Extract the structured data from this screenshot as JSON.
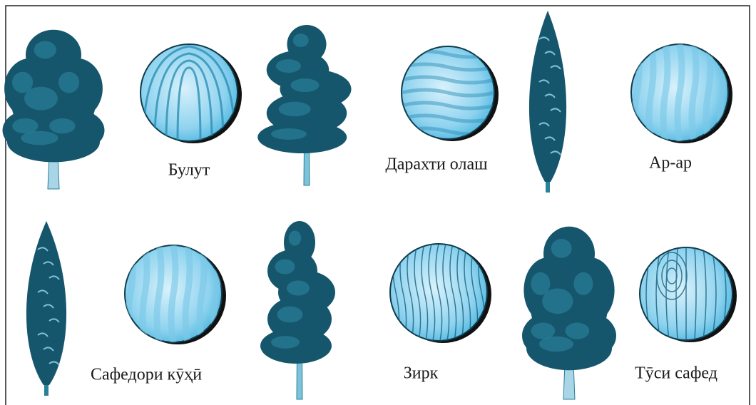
{
  "items": [
    {
      "label": "Булут"
    },
    {
      "label": "Дарахти олаш"
    },
    {
      "label": "Ар-ар"
    },
    {
      "label": "Сафедори кӯҳӣ"
    },
    {
      "label": "Зирк"
    },
    {
      "label": "Тӯси сафед"
    }
  ]
}
